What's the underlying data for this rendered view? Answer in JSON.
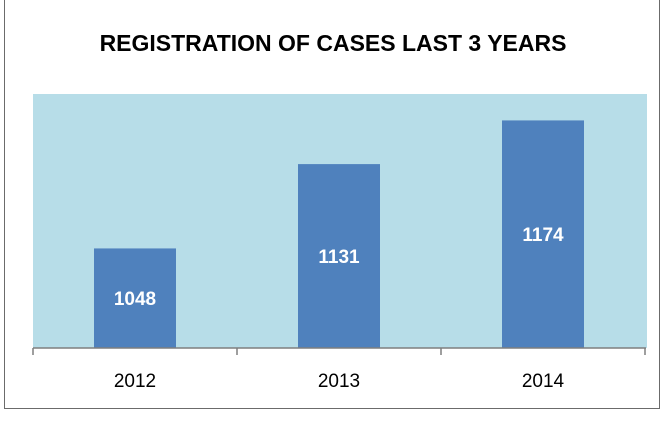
{
  "chart_data": {
    "type": "bar",
    "title": "REGISTRATION OF CASES LAST 3 YEARS",
    "categories": [
      "2012",
      "2013",
      "2014"
    ],
    "values": [
      1048,
      1131,
      1174
    ],
    "data_labels": [
      "1048",
      "1131",
      "1174"
    ],
    "xlabel": "",
    "ylabel": "",
    "ylim": [
      950,
      1200
    ],
    "grid": false,
    "legend": "none",
    "colors": {
      "bar": "#4f81bd",
      "plot_bg": "#b7dde8",
      "axis": "#7f7f7f"
    }
  }
}
